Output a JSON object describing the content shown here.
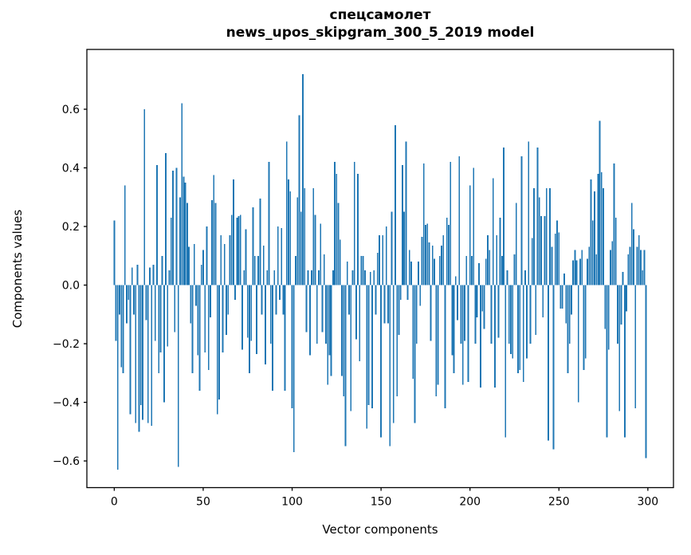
{
  "chart_data": {
    "type": "bar",
    "title": "спецсамолет",
    "subtitle": "news_upos_skipgram_300_5_2019 model",
    "xlabel": "Vector components",
    "ylabel": "Components values",
    "x_ticks": [
      0,
      50,
      100,
      150,
      200,
      250,
      300
    ],
    "y_ticks": [
      0.6,
      0.4,
      0.2,
      0.0,
      -0.2,
      -0.4,
      -0.6
    ],
    "y_tick_labels": [
      "0.6",
      "0.4",
      "0.2",
      "0.0",
      "−0.2",
      "−0.4",
      "−0.6"
    ],
    "xlim": [
      -15.4,
      314.4
    ],
    "ylim": [
      -0.691,
      0.804
    ],
    "bar_color": "#1f77b4",
    "axis_color": "#000000",
    "background": "#ffffff",
    "n_components": 300,
    "grid": false,
    "legend": "none",
    "values": [
      0.22,
      -0.19,
      -0.63,
      -0.1,
      -0.28,
      -0.3,
      0.34,
      -0.13,
      -0.05,
      -0.44,
      0.06,
      -0.1,
      -0.47,
      0.07,
      -0.5,
      -0.41,
      -0.46,
      0.6,
      -0.12,
      -0.47,
      0.06,
      -0.48,
      0.07,
      -0.19,
      0.41,
      -0.3,
      -0.23,
      0.1,
      -0.4,
      0.45,
      -0.21,
      0.05,
      0.23,
      0.39,
      -0.16,
      0.4,
      -0.62,
      0.3,
      0.62,
      0.37,
      0.35,
      0.28,
      0.13,
      -0.13,
      -0.3,
      0.14,
      -0.07,
      -0.24,
      -0.36,
      0.07,
      0.12,
      -0.23,
      0.2,
      -0.29,
      -0.11,
      0.29,
      0.375,
      0.28,
      -0.44,
      -0.39,
      0.17,
      -0.23,
      0.14,
      -0.17,
      -0.1,
      0.17,
      0.24,
      0.36,
      -0.05,
      0.23,
      0.235,
      0.24,
      -0.22,
      0.05,
      0.19,
      -0.18,
      -0.3,
      -0.19,
      0.265,
      0.1,
      -0.235,
      0.1,
      0.295,
      -0.1,
      0.135,
      -0.27,
      0.05,
      0.42,
      -0.2,
      -0.36,
      0.05,
      -0.1,
      0.2,
      -0.05,
      0.195,
      -0.1,
      -0.36,
      0.49,
      0.36,
      0.32,
      -0.42,
      -0.57,
      0.1,
      0.3,
      0.58,
      0.25,
      0.72,
      0.33,
      -0.16,
      0.05,
      -0.24,
      0.05,
      0.33,
      0.24,
      -0.2,
      0.05,
      0.21,
      -0.16,
      0.105,
      -0.2,
      -0.34,
      -0.24,
      -0.31,
      0.05,
      0.42,
      0.38,
      0.28,
      0.155,
      -0.31,
      -0.38,
      -0.55,
      0.08,
      -0.1,
      -0.43,
      0.05,
      0.42,
      -0.185,
      0.38,
      -0.26,
      0.1,
      0.1,
      0.05,
      -0.49,
      -0.41,
      0.045,
      -0.42,
      0.05,
      -0.1,
      0.11,
      0.17,
      -0.52,
      0.17,
      -0.13,
      0.2,
      -0.13,
      -0.55,
      0.25,
      -0.47,
      0.545,
      -0.38,
      -0.17,
      -0.05,
      0.41,
      0.25,
      0.49,
      -0.05,
      0.12,
      0.08,
      -0.32,
      -0.47,
      -0.2,
      0.08,
      -0.07,
      0.165,
      0.415,
      0.205,
      0.21,
      0.145,
      -0.19,
      0.135,
      0.09,
      -0.38,
      -0.34,
      0.1,
      0.135,
      0.17,
      -0.42,
      0.23,
      0.205,
      0.42,
      -0.24,
      -0.3,
      0.03,
      -0.12,
      0.44,
      -0.2,
      -0.34,
      -0.19,
      0.1,
      -0.33,
      0.34,
      0.1,
      0.4,
      -0.2,
      -0.11,
      0.075,
      -0.35,
      -0.09,
      -0.15,
      0.09,
      0.17,
      0.12,
      -0.2,
      0.365,
      -0.35,
      0.17,
      -0.18,
      0.23,
      0.1,
      0.47,
      -0.52,
      0.05,
      -0.2,
      -0.235,
      -0.25,
      0.105,
      0.28,
      -0.3,
      -0.29,
      0.44,
      -0.33,
      0.05,
      -0.25,
      0.49,
      -0.2,
      0.16,
      0.33,
      -0.17,
      0.47,
      0.3,
      0.235,
      -0.11,
      0.235,
      0.33,
      -0.53,
      0.33,
      0.13,
      -0.56,
      0.175,
      0.22,
      0.18,
      -0.08,
      -0.08,
      0.04,
      -0.13,
      -0.3,
      -0.2,
      -0.1,
      0.085,
      0.12,
      0.085,
      -0.4,
      0.09,
      0.12,
      -0.29,
      -0.25,
      0.09,
      0.13,
      0.36,
      0.22,
      0.32,
      0.105,
      0.38,
      0.56,
      0.385,
      0.33,
      -0.15,
      -0.52,
      -0.22,
      0.12,
      0.15,
      0.415,
      0.23,
      -0.2,
      -0.43,
      -0.135,
      0.045,
      -0.52,
      -0.09,
      0.105,
      0.13,
      0.28,
      0.19,
      -0.42,
      0.13,
      0.17,
      0.12,
      0.05,
      0.12,
      -0.59
    ]
  }
}
